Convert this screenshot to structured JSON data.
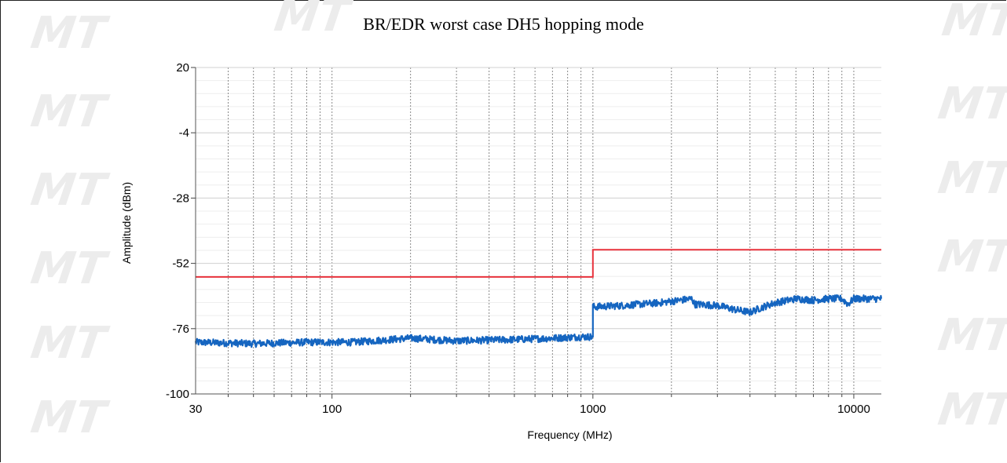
{
  "chart_data": {
    "type": "line",
    "title": "BR/EDR worst case DH5 hopping mode",
    "xlabel": "Frequency (MHz)",
    "ylabel": "Amplitude (dBm)",
    "xscale": "log",
    "xlim": [
      30,
      12750
    ],
    "ylim": [
      -100,
      20
    ],
    "yticks": [
      20,
      -4,
      -28,
      -52,
      -76,
      -100
    ],
    "xtick_labels": [
      "30",
      "100",
      "1000",
      "10000"
    ],
    "xtick_values": [
      30,
      100,
      1000,
      10000
    ],
    "grid": true,
    "series": [
      {
        "color": "#e8323c",
        "x": [
          30,
          1000,
          1000,
          12750
        ],
        "y": [
          -57,
          -57,
          -47,
          -47
        ]
      },
      {
        "color": "#1565c0",
        "x": [
          30,
          50,
          80,
          120,
          200,
          300,
          500,
          700,
          900,
          1000,
          1000,
          1300,
          1800,
          2400,
          2450,
          3000,
          3500,
          4000,
          4500,
          5000,
          6000,
          7000,
          8000,
          9000,
          9500,
          10000,
          11000,
          12750
        ],
        "y": [
          -81,
          -81.5,
          -81,
          -81,
          -79.5,
          -80.5,
          -80,
          -79.5,
          -79,
          -79,
          -68,
          -67.5,
          -66.5,
          -65,
          -67,
          -67.5,
          -69,
          -70,
          -68,
          -66.5,
          -65,
          -65.5,
          -65,
          -65,
          -67,
          -65,
          -65,
          -65
        ]
      }
    ]
  },
  "watermark": "MT"
}
